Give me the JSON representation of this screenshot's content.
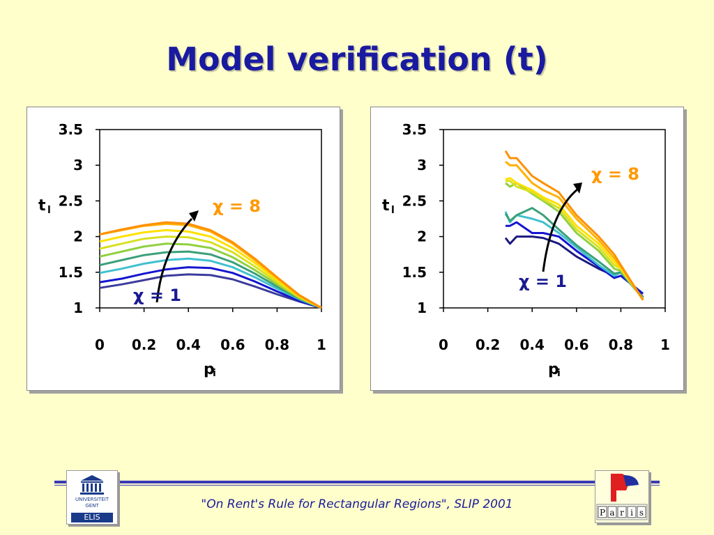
{
  "title": "Model verification (t)",
  "footer": "\"On Rent's Rule for Rectangular Regions\", SLIP 2001",
  "logos": {
    "left_line1": "UNIVERSITEIT",
    "left_line2": "GENT",
    "left_line3": "ELIS",
    "right_letters": [
      "P",
      "a",
      "r",
      "i",
      "s"
    ]
  },
  "colors": {
    "title": "#1a1aa0",
    "chi8_label": "#ff9900",
    "chi1_label": "#1a1a90",
    "footer": "#1a1a9a"
  },
  "chart_data": [
    {
      "type": "line",
      "ylabel": "t",
      "ylabel_sub": "l",
      "xlabel": "p",
      "xlabel_sub": "i",
      "xlim": [
        0,
        1
      ],
      "ylim": [
        1,
        3.5
      ],
      "xticks": [
        "0",
        "0.2",
        "0.4",
        "0.6",
        "0.8",
        "1"
      ],
      "yticks": [
        "1",
        "1.5",
        "2",
        "2.5",
        "3",
        "3.5"
      ],
      "annotations": [
        {
          "text": "χ = 8",
          "color": "#ff9900"
        },
        {
          "text": "χ = 1",
          "color": "#1a1a90"
        }
      ],
      "series": [
        {
          "color": "#3b3b9c",
          "x": [
            0,
            0.1,
            0.2,
            0.3,
            0.4,
            0.5,
            0.6,
            0.7,
            0.8,
            0.9,
            1
          ],
          "y": [
            1.28,
            1.33,
            1.39,
            1.45,
            1.47,
            1.46,
            1.4,
            1.3,
            1.19,
            1.09,
            1
          ]
        },
        {
          "color": "#1515d0",
          "x": [
            0,
            0.1,
            0.2,
            0.3,
            0.4,
            0.5,
            0.6,
            0.7,
            0.8,
            0.9,
            1
          ],
          "y": [
            1.36,
            1.41,
            1.48,
            1.54,
            1.57,
            1.56,
            1.49,
            1.37,
            1.23,
            1.1,
            1
          ]
        },
        {
          "color": "#40c0d0",
          "x": [
            0,
            0.1,
            0.2,
            0.3,
            0.4,
            0.5,
            0.6,
            0.7,
            0.8,
            0.9,
            1
          ],
          "y": [
            1.49,
            1.55,
            1.62,
            1.67,
            1.69,
            1.66,
            1.57,
            1.43,
            1.27,
            1.12,
            1
          ]
        },
        {
          "color": "#3aa07a",
          "x": [
            0,
            0.1,
            0.2,
            0.3,
            0.4,
            0.5,
            0.6,
            0.7,
            0.8,
            0.9,
            1
          ],
          "y": [
            1.6,
            1.67,
            1.74,
            1.78,
            1.79,
            1.75,
            1.64,
            1.48,
            1.3,
            1.13,
            1
          ]
        },
        {
          "color": "#90d040",
          "x": [
            0,
            0.1,
            0.2,
            0.3,
            0.4,
            0.5,
            0.6,
            0.7,
            0.8,
            0.9,
            1
          ],
          "y": [
            1.72,
            1.79,
            1.86,
            1.9,
            1.89,
            1.84,
            1.71,
            1.53,
            1.33,
            1.14,
            1
          ]
        },
        {
          "color": "#d8e020",
          "x": [
            0,
            0.1,
            0.2,
            0.3,
            0.4,
            0.5,
            0.6,
            0.7,
            0.8,
            0.9,
            1
          ],
          "y": [
            1.83,
            1.9,
            1.97,
            2.0,
            1.99,
            1.92,
            1.78,
            1.58,
            1.36,
            1.15,
            1
          ]
        },
        {
          "color": "#ffe000",
          "x": [
            0,
            0.1,
            0.2,
            0.3,
            0.4,
            0.5,
            0.6,
            0.7,
            0.8,
            0.9,
            1
          ],
          "y": [
            1.93,
            2.0,
            2.06,
            2.09,
            2.07,
            2.0,
            1.84,
            1.63,
            1.39,
            1.16,
            1
          ]
        },
        {
          "color": "#ffb000",
          "x": [
            0,
            0.1,
            0.2,
            0.3,
            0.4,
            0.5,
            0.6,
            0.7,
            0.8,
            0.9,
            1
          ],
          "y": [
            2.03,
            2.09,
            2.15,
            2.18,
            2.16,
            2.07,
            1.9,
            1.67,
            1.42,
            1.17,
            1
          ]
        },
        {
          "color": "#ff9000",
          "x": [
            0,
            0.1,
            0.2,
            0.3,
            0.4,
            0.5,
            0.6,
            0.7,
            0.8,
            0.9,
            1
          ],
          "y": [
            2.03,
            2.1,
            2.16,
            2.2,
            2.18,
            2.09,
            1.92,
            1.69,
            1.43,
            1.18,
            1
          ]
        }
      ]
    },
    {
      "type": "line",
      "ylabel": "t",
      "ylabel_sub": "l",
      "xlabel": "p",
      "xlabel_sub": "i",
      "xlim": [
        0,
        1
      ],
      "ylim": [
        1,
        3.5
      ],
      "xticks": [
        "0",
        "0.2",
        "0.4",
        "0.6",
        "0.8",
        "1"
      ],
      "yticks": [
        "1",
        "1.5",
        "2",
        "2.5",
        "3",
        "3.5"
      ],
      "annotations": [
        {
          "text": "χ = 8",
          "color": "#ff9900"
        },
        {
          "text": "χ = 1",
          "color": "#1a1a90"
        }
      ],
      "series": [
        {
          "color": "#1a1a80",
          "x": [
            0.28,
            0.3,
            0.33,
            0.4,
            0.45,
            0.52,
            0.6,
            0.7,
            0.77,
            0.8,
            0.9
          ],
          "y": [
            1.98,
            1.9,
            2.0,
            2.0,
            1.98,
            1.9,
            1.72,
            1.55,
            1.45,
            1.5,
            1.15
          ]
        },
        {
          "color": "#1515d0",
          "x": [
            0.28,
            0.3,
            0.33,
            0.4,
            0.45,
            0.52,
            0.6,
            0.7,
            0.77,
            0.8,
            0.9
          ],
          "y": [
            2.15,
            2.15,
            2.2,
            2.05,
            2.05,
            2.0,
            1.8,
            1.58,
            1.42,
            1.45,
            1.2
          ]
        },
        {
          "color": "#40c0d0",
          "x": [
            0.28,
            0.3,
            0.33,
            0.4,
            0.45,
            0.52,
            0.6,
            0.7,
            0.77,
            0.8,
            0.9
          ],
          "y": [
            2.35,
            2.2,
            2.3,
            2.25,
            2.2,
            2.05,
            1.85,
            1.6,
            1.45,
            1.5,
            1.14
          ]
        },
        {
          "color": "#3aa07a",
          "x": [
            0.28,
            0.3,
            0.33,
            0.4,
            0.45,
            0.52,
            0.6,
            0.7,
            0.77,
            0.8,
            0.9
          ],
          "y": [
            2.32,
            2.22,
            2.3,
            2.4,
            2.3,
            2.1,
            1.88,
            1.65,
            1.48,
            1.5,
            1.13
          ]
        },
        {
          "color": "#90d040",
          "x": [
            0.28,
            0.3,
            0.33,
            0.4,
            0.45,
            0.52,
            0.6,
            0.7,
            0.77,
            0.8,
            0.9
          ],
          "y": [
            2.75,
            2.7,
            2.75,
            2.6,
            2.5,
            2.35,
            2.05,
            1.8,
            1.55,
            1.52,
            1.13
          ]
        },
        {
          "color": "#d8e020",
          "x": [
            0.28,
            0.3,
            0.33,
            0.4,
            0.45,
            0.52,
            0.6,
            0.7,
            0.77,
            0.8,
            0.9
          ],
          "y": [
            2.78,
            2.78,
            2.7,
            2.62,
            2.52,
            2.4,
            2.1,
            1.85,
            1.6,
            1.55,
            1.12
          ]
        },
        {
          "color": "#ffe000",
          "x": [
            0.28,
            0.3,
            0.33,
            0.4,
            0.45,
            0.52,
            0.6,
            0.7,
            0.77,
            0.8,
            0.9
          ],
          "y": [
            2.8,
            2.82,
            2.75,
            2.65,
            2.55,
            2.45,
            2.15,
            1.9,
            1.65,
            1.55,
            1.12
          ]
        },
        {
          "color": "#ffb000",
          "x": [
            0.28,
            0.3,
            0.33,
            0.4,
            0.45,
            0.52,
            0.6,
            0.7,
            0.77,
            0.8,
            0.9
          ],
          "y": [
            3.05,
            3.0,
            3.0,
            2.75,
            2.65,
            2.55,
            2.25,
            1.95,
            1.7,
            1.58,
            1.11
          ]
        },
        {
          "color": "#ff9000",
          "x": [
            0.28,
            0.3,
            0.33,
            0.4,
            0.45,
            0.52,
            0.6,
            0.7,
            0.77,
            0.8,
            0.9
          ],
          "y": [
            3.2,
            3.1,
            3.1,
            2.85,
            2.75,
            2.62,
            2.3,
            2.0,
            1.75,
            1.6,
            1.11
          ]
        }
      ]
    }
  ]
}
